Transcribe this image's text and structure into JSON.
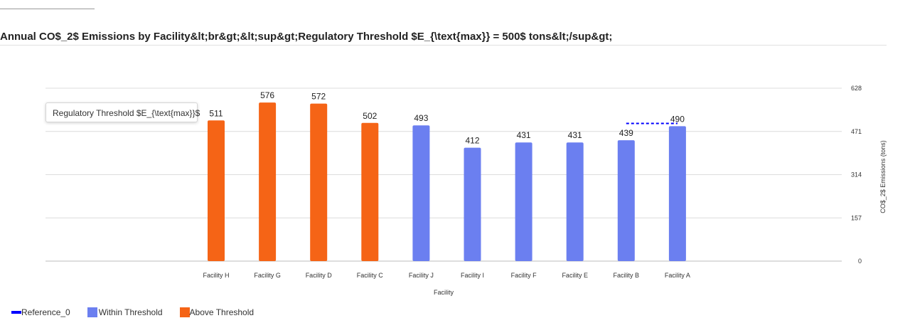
{
  "title": "Annual CO$_2$ Emissions by Facility&lt;br&gt;&lt;sup&gt;Regulatory Threshold $E_{\\text{max}} = 500$ tons&lt;/sup&gt;",
  "tooltip": "Regulatory Threshold $E_{\\text{max}}$",
  "legend": [
    {
      "label": "Reference_0",
      "color": "#0000ff",
      "kind": "line"
    },
    {
      "label": "Within Threshold",
      "color": "#6b7ff0",
      "kind": "box"
    },
    {
      "label": "Above Threshold",
      "color": "#f56416",
      "kind": "box"
    }
  ],
  "chart_data": {
    "type": "bar",
    "categories": [
      "Facility H",
      "Facility G",
      "Facility D",
      "Facility C",
      "Facility J",
      "Facility I",
      "Facility F",
      "Facility E",
      "Facility B",
      "Facility A"
    ],
    "values": [
      511,
      576,
      572,
      502,
      493,
      412,
      431,
      431,
      439,
      490
    ],
    "status": [
      "Above Threshold",
      "Above Threshold",
      "Above Threshold",
      "Above Threshold",
      "Within Threshold",
      "Within Threshold",
      "Within Threshold",
      "Within Threshold",
      "Within Threshold",
      "Within Threshold"
    ],
    "xlabel": "Facility",
    "ylabel": "CO$_2$ Emissions (tons)",
    "ylim": [
      0,
      628
    ],
    "yticks": [
      0,
      157,
      314,
      471,
      628
    ],
    "y_axis_side": "right",
    "grid": true,
    "threshold": 500,
    "reference_line": {
      "name": "Reference_0",
      "value": 500,
      "from": "Facility B",
      "to": "Facility A",
      "style": "dashed",
      "color": "#0000ff"
    },
    "colors": {
      "above": "#f56416",
      "within": "#6b7ff0"
    }
  }
}
